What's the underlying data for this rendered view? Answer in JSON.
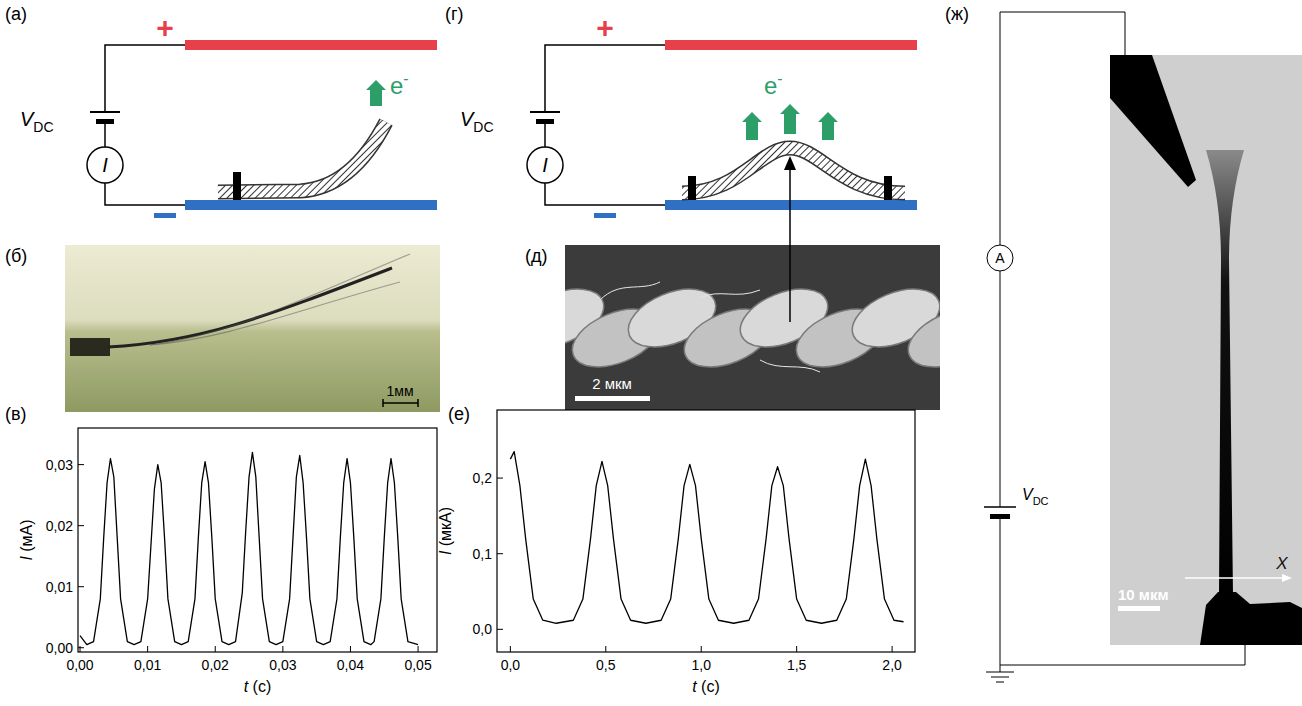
{
  "panel_labels": {
    "a": "(а)",
    "b": "(б)",
    "c": "(в)",
    "d": "(г)",
    "e": "(д)",
    "f": "(е)",
    "g": "(ж)"
  },
  "schematic": {
    "plus": "+",
    "voltage_symbol": "V",
    "voltage_subscript": "DC",
    "current_symbol": "I",
    "electron_symbol": "e",
    "electron_charge": "-",
    "ammeter": "A",
    "axis_label": "X"
  },
  "scale_bars": {
    "photo": "1мм",
    "sem": "2 мкм",
    "tem": "10 мкм"
  },
  "chart_data": [
    {
      "type": "line",
      "x_label": "t (с)",
      "y_label": "I (мА)",
      "x": [
        0,
        0.001,
        0.002,
        0.003,
        0.0035,
        0.004,
        0.0045,
        0.005,
        0.0055,
        0.006,
        0.007,
        0.008,
        0.009,
        0.01,
        0.0105,
        0.011,
        0.0115,
        0.012,
        0.0125,
        0.013,
        0.014,
        0.015,
        0.016,
        0.017,
        0.0175,
        0.018,
        0.0185,
        0.019,
        0.0195,
        0.02,
        0.021,
        0.022,
        0.023,
        0.024,
        0.0245,
        0.025,
        0.0255,
        0.026,
        0.0265,
        0.027,
        0.028,
        0.029,
        0.03,
        0.031,
        0.0315,
        0.032,
        0.0325,
        0.033,
        0.0335,
        0.034,
        0.035,
        0.036,
        0.037,
        0.038,
        0.0385,
        0.039,
        0.0395,
        0.04,
        0.0405,
        0.041,
        0.042,
        0.043,
        0.0435,
        0.0445,
        0.045,
        0.0455,
        0.046,
        0.0465,
        0.047,
        0.0475,
        0.0485,
        0.05
      ],
      "series": [
        {
          "color": "#000000",
          "values": [
            0.002,
            0.0005,
            0.001,
            0.008,
            0.018,
            0.027,
            0.031,
            0.028,
            0.018,
            0.008,
            0.001,
            0.0005,
            0.001,
            0.008,
            0.017,
            0.026,
            0.03,
            0.027,
            0.018,
            0.008,
            0.001,
            0.0005,
            0.001,
            0.008,
            0.018,
            0.027,
            0.0305,
            0.027,
            0.018,
            0.008,
            0.001,
            0.0005,
            0.001,
            0.009,
            0.019,
            0.028,
            0.032,
            0.028,
            0.018,
            0.008,
            0.001,
            0.0005,
            0.001,
            0.008,
            0.018,
            0.028,
            0.0315,
            0.027,
            0.018,
            0.008,
            0.001,
            0.0005,
            0.001,
            0.008,
            0.018,
            0.027,
            0.031,
            0.027,
            0.018,
            0.008,
            0.001,
            0.0005,
            0.001,
            0.008,
            0.018,
            0.027,
            0.031,
            0.027,
            0.018,
            0.008,
            0.001,
            0.0005
          ]
        }
      ],
      "xlim": [
        -0.0003,
        0.0528
      ],
      "ylim": [
        -0.0007,
        0.036
      ],
      "xticks": [
        {
          "value": 0,
          "label": "0,00"
        },
        {
          "value": 0.01,
          "label": "0,01"
        },
        {
          "value": 0.02,
          "label": "0,02"
        },
        {
          "value": 0.03,
          "label": "0,03"
        },
        {
          "value": 0.04,
          "label": "0,04"
        },
        {
          "value": 0.05,
          "label": "0,05"
        }
      ],
      "yticks": [
        {
          "value": 0,
          "label": "0,00"
        },
        {
          "value": 0.01,
          "label": "0,01"
        },
        {
          "value": 0.02,
          "label": "0,02"
        },
        {
          "value": 0.03,
          "label": "0,03"
        }
      ],
      "grid": false
    },
    {
      "type": "line",
      "x_label": "t (с)",
      "y_label": "I (мкА)",
      "x": [
        0,
        0.02,
        0.05,
        0.08,
        0.12,
        0.17,
        0.24,
        0.33,
        0.38,
        0.42,
        0.45,
        0.48,
        0.51,
        0.54,
        0.58,
        0.63,
        0.71,
        0.79,
        0.84,
        0.88,
        0.91,
        0.94,
        0.97,
        1.0,
        1.04,
        1.09,
        1.17,
        1.25,
        1.3,
        1.34,
        1.37,
        1.4,
        1.43,
        1.46,
        1.5,
        1.55,
        1.63,
        1.71,
        1.76,
        1.8,
        1.83,
        1.86,
        1.89,
        1.92,
        1.96,
        2.01,
        2.06
      ],
      "series": [
        {
          "color": "#000000",
          "values": [
            0.225,
            0.235,
            0.19,
            0.12,
            0.04,
            0.012,
            0.008,
            0.012,
            0.04,
            0.12,
            0.19,
            0.222,
            0.19,
            0.12,
            0.04,
            0.012,
            0.008,
            0.012,
            0.04,
            0.12,
            0.19,
            0.218,
            0.19,
            0.12,
            0.04,
            0.012,
            0.008,
            0.012,
            0.04,
            0.12,
            0.19,
            0.215,
            0.19,
            0.12,
            0.04,
            0.012,
            0.008,
            0.012,
            0.04,
            0.12,
            0.19,
            0.225,
            0.19,
            0.12,
            0.04,
            0.012,
            0.01
          ]
        }
      ],
      "xlim": [
        -0.07,
        2.12
      ],
      "ylim": [
        -0.03,
        0.29
      ],
      "xticks": [
        {
          "value": 0,
          "label": "0,0"
        },
        {
          "value": 0.5,
          "label": "0,5"
        },
        {
          "value": 1,
          "label": "1,0"
        },
        {
          "value": 1.5,
          "label": "1,5"
        },
        {
          "value": 2,
          "label": "2,0"
        }
      ],
      "yticks": [
        {
          "value": 0,
          "label": "0,0"
        },
        {
          "value": 0.1,
          "label": "0,1"
        },
        {
          "value": 0.2,
          "label": "0,2"
        }
      ],
      "grid": false
    }
  ]
}
